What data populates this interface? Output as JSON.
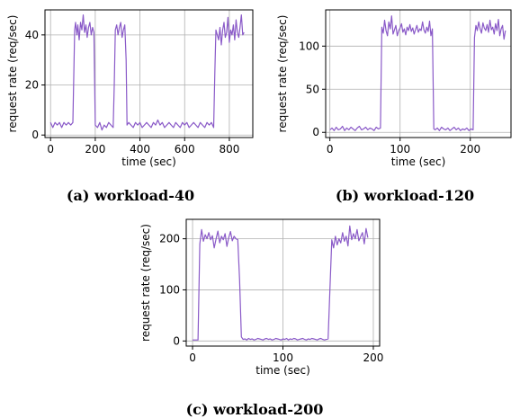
{
  "figure": {
    "line_color": "#8a5ac8"
  },
  "chart_data": [
    {
      "type": "line",
      "caption_letter": "(a)",
      "caption_text": "workload-40",
      "xlabel": "time (sec)",
      "ylabel": "request rate (req/sec)",
      "xlim": [
        -25,
        905
      ],
      "ylim": [
        -1,
        50
      ],
      "xticks": [
        0,
        200,
        400,
        600,
        800
      ],
      "yticks": [
        0,
        20,
        40
      ],
      "grid": true,
      "series": [
        {
          "x": [
            0,
            10,
            20,
            30,
            40,
            50,
            60,
            70,
            80,
            90,
            100,
            108,
            112,
            118,
            122,
            128,
            134,
            140,
            146,
            152,
            158,
            164,
            170,
            176,
            182,
            188,
            194,
            200,
            210,
            220,
            230,
            240,
            250,
            260,
            270,
            280,
            285,
            290,
            296,
            302,
            308,
            314,
            320,
            326,
            332,
            338,
            342,
            350,
            360,
            370,
            380,
            390,
            400,
            410,
            420,
            430,
            440,
            450,
            460,
            470,
            480,
            490,
            500,
            510,
            520,
            530,
            540,
            550,
            560,
            570,
            580,
            590,
            600,
            610,
            620,
            630,
            640,
            650,
            660,
            670,
            680,
            690,
            700,
            710,
            720,
            730,
            735,
            740,
            746,
            752,
            758,
            764,
            770,
            776,
            782,
            788,
            794,
            800,
            806,
            812,
            818,
            824,
            830,
            836,
            842,
            848,
            854,
            860,
            866
          ],
          "y": [
            5,
            3,
            5,
            4,
            5,
            3,
            5,
            4,
            5,
            4,
            5,
            42,
            45,
            40,
            44,
            38,
            45,
            42,
            48,
            41,
            44,
            39,
            43,
            45,
            40,
            43,
            41,
            4,
            3,
            5,
            2,
            4,
            3,
            5,
            4,
            3,
            20,
            42,
            44,
            40,
            43,
            45,
            39,
            42,
            44,
            30,
            4,
            5,
            4,
            3,
            5,
            4,
            5,
            3,
            4,
            5,
            4,
            3,
            5,
            4,
            6,
            4,
            5,
            3,
            4,
            5,
            4,
            3,
            5,
            4,
            3,
            5,
            4,
            5,
            3,
            4,
            5,
            4,
            3,
            5,
            4,
            3,
            5,
            4,
            5,
            3,
            25,
            42,
            40,
            38,
            43,
            36,
            42,
            45,
            39,
            41,
            47,
            37,
            42,
            40,
            44,
            38,
            46,
            41,
            39,
            43,
            48,
            40,
            41
          ]
        }
      ]
    },
    {
      "type": "line",
      "caption_letter": "(b)",
      "caption_text": "workload-120",
      "xlabel": "time (sec)",
      "ylabel": "request rate (req/sec)",
      "xlim": [
        -6,
        258
      ],
      "ylim": [
        -6,
        142
      ],
      "xticks": [
        0,
        100,
        200
      ],
      "yticks": [
        0,
        50,
        100
      ],
      "grid": true,
      "series": [
        {
          "x": [
            0,
            3,
            6,
            9,
            12,
            15,
            18,
            21,
            24,
            27,
            30,
            33,
            36,
            39,
            42,
            45,
            48,
            51,
            54,
            57,
            60,
            63,
            66,
            69,
            72,
            74,
            76,
            78,
            80,
            82,
            84,
            86,
            88,
            90,
            92,
            94,
            96,
            98,
            100,
            102,
            104,
            106,
            108,
            110,
            112,
            114,
            116,
            118,
            120,
            122,
            124,
            126,
            128,
            130,
            132,
            134,
            136,
            138,
            140,
            142,
            144,
            146,
            148,
            150,
            153,
            156,
            159,
            162,
            165,
            168,
            171,
            174,
            177,
            180,
            183,
            186,
            189,
            192,
            195,
            198,
            201,
            204,
            206,
            208,
            210,
            212,
            214,
            216,
            218,
            220,
            222,
            224,
            226,
            228,
            230,
            232,
            234,
            236,
            238,
            240,
            242,
            244,
            246,
            248,
            250
          ],
          "y": [
            3,
            5,
            2,
            6,
            3,
            4,
            7,
            2,
            5,
            3,
            6,
            4,
            2,
            5,
            7,
            3,
            4,
            6,
            3,
            5,
            4,
            2,
            6,
            4,
            5,
            122,
            115,
            130,
            118,
            112,
            128,
            120,
            135,
            114,
            119,
            124,
            112,
            118,
            121,
            126,
            116,
            120,
            113,
            122,
            118,
            125,
            117,
            121,
            114,
            119,
            124,
            116,
            120,
            118,
            128,
            119,
            115,
            122,
            117,
            129,
            112,
            120,
            4,
            3,
            5,
            2,
            6,
            4,
            3,
            5,
            2,
            4,
            6,
            3,
            5,
            2,
            4,
            3,
            5,
            2,
            4,
            3,
            110,
            124,
            118,
            128,
            120,
            115,
            127,
            121,
            118,
            125,
            116,
            130,
            119,
            122,
            114,
            126,
            118,
            131,
            112,
            120,
            124,
            108,
            118
          ]
        }
      ]
    },
    {
      "type": "line",
      "caption_letter": "(c)",
      "caption_text": "workload-200",
      "xlabel": "time (sec)",
      "ylabel": "request rate (req/sec)",
      "xlim": [
        -7,
        207
      ],
      "ylim": [
        -10,
        238
      ],
      "xticks": [
        0,
        100,
        200
      ],
      "yticks": [
        0,
        100,
        200
      ],
      "grid": true,
      "series": [
        {
          "x": [
            0,
            2,
            4,
            6,
            8,
            10,
            12,
            14,
            16,
            18,
            20,
            22,
            24,
            26,
            28,
            30,
            32,
            34,
            36,
            38,
            40,
            42,
            44,
            46,
            48,
            50,
            52,
            54,
            56,
            58,
            60,
            62,
            64,
            66,
            68,
            70,
            72,
            74,
            76,
            78,
            80,
            82,
            84,
            86,
            88,
            90,
            92,
            94,
            96,
            98,
            100,
            102,
            104,
            106,
            108,
            110,
            112,
            114,
            116,
            118,
            120,
            122,
            124,
            126,
            128,
            130,
            132,
            134,
            136,
            138,
            140,
            142,
            144,
            146,
            148,
            150,
            152,
            154,
            156,
            158,
            160,
            162,
            164,
            166,
            168,
            170,
            172,
            174,
            176,
            178,
            180,
            182,
            184,
            186,
            188,
            190,
            192,
            194
          ],
          "y": [
            2,
            2,
            2,
            2,
            190,
            218,
            195,
            208,
            200,
            212,
            198,
            206,
            182,
            200,
            215,
            192,
            205,
            198,
            210,
            185,
            202,
            214,
            196,
            205,
            200,
            198,
            120,
            8,
            3,
            4,
            2,
            5,
            3,
            4,
            2,
            3,
            5,
            4,
            3,
            2,
            4,
            5,
            3,
            4,
            2,
            3,
            5,
            4,
            3,
            2,
            4,
            3,
            5,
            2,
            4,
            3,
            5,
            4,
            2,
            3,
            4,
            5,
            3,
            2,
            4,
            3,
            5,
            4,
            3,
            2,
            4,
            5,
            3,
            2,
            3,
            4,
            100,
            198,
            182,
            205,
            188,
            200,
            192,
            212,
            195,
            205,
            186,
            225,
            198,
            210,
            200,
            218,
            196,
            204,
            212,
            190,
            220,
            202
          ]
        }
      ]
    }
  ]
}
